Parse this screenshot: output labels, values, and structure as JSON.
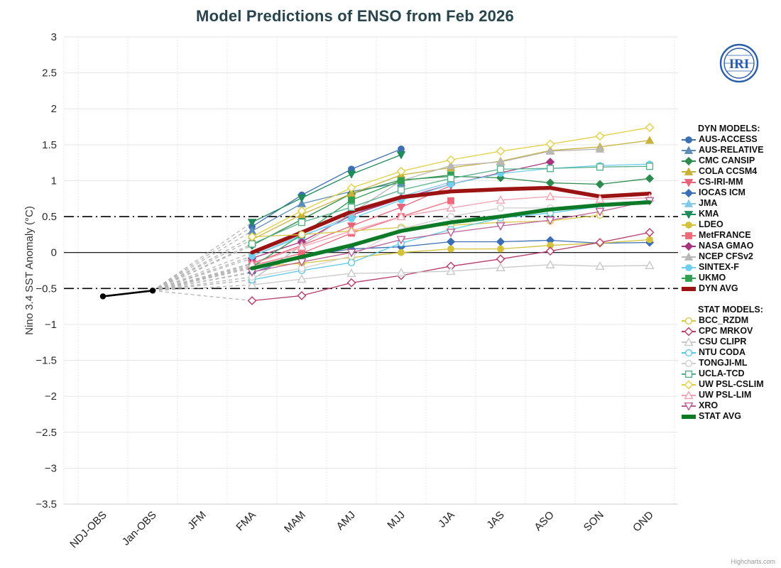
{
  "title": "Model Predictions of ENSO from Feb 2026",
  "y_axis_label": "Nino 3.4 SST Anomaly (°C)",
  "credits": "Highcharts.com",
  "logo_text": "IRI",
  "legend": {
    "dyn_header": "DYN MODELS:",
    "stat_header": "STAT MODELS:"
  },
  "chart_data": {
    "type": "line",
    "title": "Model Predictions of ENSO from Feb 2026",
    "ylabel": "Nino 3.4 SST Anomaly (°C)",
    "ylim": [
      -3.5,
      3
    ],
    "y_tick_step": 0.5,
    "grid": true,
    "legend_position": "right",
    "reference_lines": [
      0.5,
      0,
      -0.5
    ],
    "categories": [
      "NDJ-OBS",
      "Jan-OBS",
      "JFM",
      "FMA",
      "MAM",
      "AMJ",
      "MJJ",
      "JJA",
      "JAS",
      "ASO",
      "SON",
      "OND"
    ],
    "observation": {
      "name": "OBS",
      "color": "#000000",
      "categories": [
        "NDJ-OBS",
        "Jan-OBS"
      ],
      "values": [
        -0.61,
        -0.53
      ]
    },
    "forecast_start_category": "FMA",
    "series": [
      {
        "name": "AUS-ACCESS",
        "group": "dyn",
        "color": "#3d6fb3",
        "marker": "circle",
        "fill": "filled",
        "values": [
          0.36,
          0.8,
          1.16,
          1.44
        ]
      },
      {
        "name": "AUS-RELATIVE",
        "group": "dyn",
        "color": "#5b8db8",
        "marker": "triangle",
        "fill": "filled",
        "values": [
          0.3,
          0.68,
          0.85,
          0.97
        ]
      },
      {
        "name": "CMC CANSIP",
        "group": "dyn",
        "color": "#2e8b4f",
        "marker": "diamond",
        "fill": "filled",
        "values": [
          0.1,
          0.46,
          0.82,
          1.01,
          1.06,
          1.04,
          0.97,
          0.95,
          1.03
        ]
      },
      {
        "name": "COLA CCSM4",
        "group": "dyn",
        "color": "#c9b037",
        "marker": "triangle",
        "fill": "filled",
        "values": [
          0.18,
          0.53,
          0.82,
          1.08,
          1.18,
          1.27,
          1.42,
          1.47,
          1.56
        ]
      },
      {
        "name": "CS-IRI-MM",
        "group": "dyn",
        "color": "#e8637a",
        "marker": "triangle-down",
        "fill": "filled",
        "values": [
          -0.15,
          0.1,
          0.37,
          0.63,
          0.93
        ]
      },
      {
        "name": "IOCAS ICM",
        "group": "dyn",
        "color": "#3a6eb5",
        "marker": "diamond",
        "fill": "filled",
        "values": [
          -0.28,
          -0.05,
          0.05,
          0.08,
          0.15,
          0.15,
          0.17,
          0.13,
          0.14
        ]
      },
      {
        "name": "JMA",
        "group": "dyn",
        "color": "#85c9e8",
        "marker": "triangle",
        "fill": "filled",
        "values": [
          -0.05,
          0.22,
          0.52,
          0.78,
          0.98
        ]
      },
      {
        "name": "KMA",
        "group": "dyn",
        "color": "#1f8a5a",
        "marker": "triangle-down",
        "fill": "filled",
        "values": [
          0.42,
          0.76,
          1.09,
          1.36
        ]
      },
      {
        "name": "LDEO",
        "group": "dyn",
        "color": "#d4c23a",
        "marker": "circle",
        "fill": "filled",
        "values": [
          -0.2,
          -0.15,
          -0.07,
          0.0,
          0.05,
          0.05,
          0.1,
          0.13,
          0.18
        ]
      },
      {
        "name": "MetFRANCE",
        "group": "dyn",
        "color": "#ef6a79",
        "marker": "square",
        "fill": "filled",
        "values": [
          -0.18,
          -0.01,
          0.27,
          0.5,
          0.72
        ]
      },
      {
        "name": "NASA GMAO",
        "group": "dyn",
        "color": "#a8337f",
        "marker": "diamond",
        "fill": "filled",
        "values": [
          -0.08,
          0.15,
          0.52,
          0.75,
          0.95,
          1.11,
          1.26
        ]
      },
      {
        "name": "NCEP CFSv2",
        "group": "dyn",
        "color": "#b8b8b8",
        "marker": "triangle",
        "fill": "filled",
        "values": [
          -0.38,
          0.1,
          0.55,
          1.0,
          1.21,
          1.26,
          1.41,
          1.44
        ]
      },
      {
        "name": "SINTEX-F",
        "group": "dyn",
        "color": "#6ecff0",
        "marker": "circle",
        "fill": "filled",
        "values": [
          -0.05,
          0.24,
          0.47,
          0.73,
          0.95,
          1.1,
          1.17,
          1.21,
          1.23
        ]
      },
      {
        "name": "UKMO",
        "group": "dyn",
        "color": "#2f9e4f",
        "marker": "square",
        "fill": "filled",
        "values": [
          -0.2,
          0.25,
          0.73,
          1.0,
          1.08
        ]
      },
      {
        "name": "DYN AVG",
        "group": "dyn",
        "color": "#9b1313",
        "marker": "none",
        "fill": "filled",
        "width": 5.5,
        "values": [
          0.0,
          0.28,
          0.57,
          0.77,
          0.85,
          0.88,
          0.9,
          0.78,
          0.82
        ]
      },
      {
        "name": "BCC_RZDM",
        "group": "stat",
        "color": "#d9c84a",
        "marker": "circle",
        "fill": "open",
        "values": [
          0.22,
          0.25,
          0.3,
          0.35,
          0.38,
          0.42,
          0.44,
          0.52
        ]
      },
      {
        "name": "CPC MRKOV",
        "group": "stat",
        "color": "#b83a6a",
        "marker": "diamond",
        "fill": "open",
        "values": [
          -0.67,
          -0.6,
          -0.42,
          -0.32,
          -0.19,
          -0.09,
          0.02,
          0.14,
          0.28
        ]
      },
      {
        "name": "CSU CLIPR",
        "group": "stat",
        "color": "#c8c8c8",
        "marker": "triangle",
        "fill": "open",
        "values": [
          -0.45,
          -0.37,
          -0.29,
          -0.28,
          -0.26,
          -0.21,
          -0.17,
          -0.19,
          -0.18
        ]
      },
      {
        "name": "NTU CODA",
        "group": "stat",
        "color": "#5bc8e8",
        "marker": "circle",
        "fill": "open",
        "values": [
          -0.38,
          -0.25,
          -0.14,
          0.13,
          0.32,
          0.48,
          0.55,
          0.64,
          0.73
        ]
      },
      {
        "name": "TONGJI-ML",
        "group": "stat",
        "color": "#d0d0d0",
        "marker": "circle",
        "fill": "open",
        "values": [
          -0.34,
          -0.22,
          -0.05,
          0.33,
          0.5,
          0.62,
          0.62
        ]
      },
      {
        "name": "UCLA-TCD",
        "group": "stat",
        "color": "#58b08a",
        "marker": "square",
        "fill": "open",
        "values": [
          0.12,
          0.42,
          0.63,
          0.87,
          1.03,
          1.16,
          1.17,
          1.19,
          1.2
        ]
      },
      {
        "name": "UW PSL-CSLIM",
        "group": "stat",
        "color": "#e3cf43",
        "marker": "diamond",
        "fill": "open",
        "values": [
          0.22,
          0.58,
          0.9,
          1.13,
          1.29,
          1.41,
          1.51,
          1.62,
          1.74
        ]
      },
      {
        "name": "UW PSL-LIM",
        "group": "stat",
        "color": "#f4a2b2",
        "marker": "triangle",
        "fill": "open",
        "values": [
          -0.16,
          0.08,
          0.3,
          0.5,
          0.62,
          0.73,
          0.78,
          0.74,
          0.76
        ]
      },
      {
        "name": "XRO",
        "group": "stat",
        "color": "#bb5f96",
        "marker": "triangle-down",
        "fill": "open",
        "values": [
          -0.27,
          -0.13,
          0.0,
          0.18,
          0.28,
          0.37,
          0.45,
          0.57,
          0.72
        ]
      },
      {
        "name": "STAT AVG",
        "group": "stat",
        "color": "#0d7a28",
        "marker": "none",
        "fill": "filled",
        "width": 5.5,
        "values": [
          -0.22,
          -0.06,
          0.1,
          0.3,
          0.42,
          0.5,
          0.6,
          0.66,
          0.7
        ]
      }
    ]
  }
}
